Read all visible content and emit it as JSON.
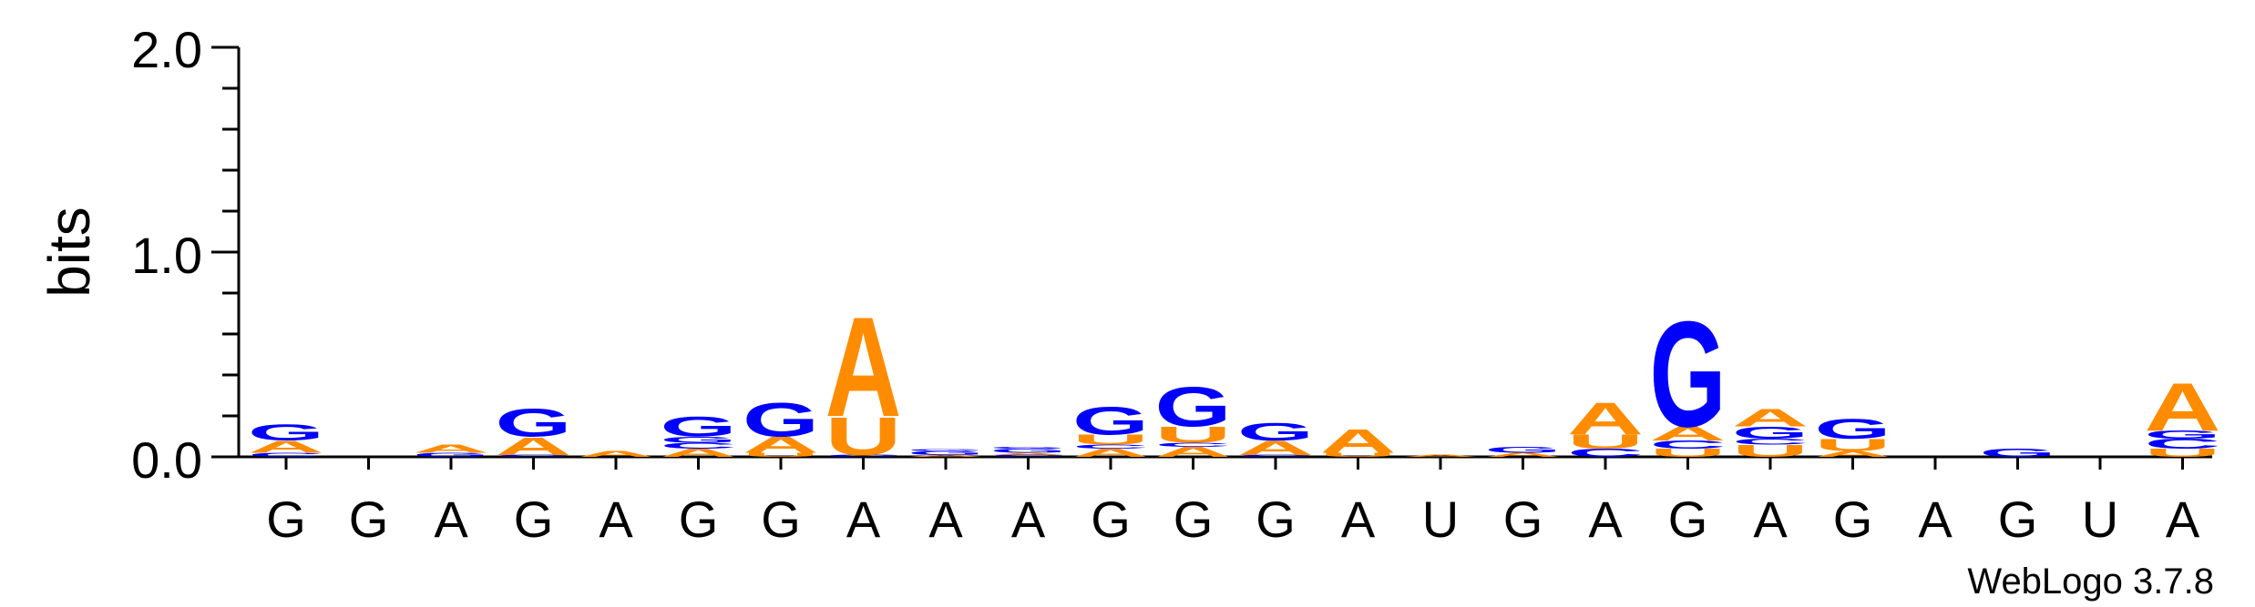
{
  "chart_data": {
    "type": "sequence-logo",
    "ylabel": "bits",
    "ylim": [
      0,
      2.0
    ],
    "yticks": [
      "0.0",
      "1.0",
      "2.0"
    ],
    "footer": "WebLogo 3.7.8",
    "colors": {
      "A": "#FF8C00",
      "U": "#FF8C00",
      "G": "#0000FF",
      "C": "#0000FF"
    },
    "positions": [
      {
        "label": "G",
        "stack": [
          {
            "letter": "C",
            "bits": 0.02
          },
          {
            "letter": "A",
            "bits": 0.06
          },
          {
            "letter": "G",
            "bits": 0.08
          }
        ]
      },
      {
        "label": "G",
        "stack": []
      },
      {
        "label": "A",
        "stack": [
          {
            "letter": "G",
            "bits": 0.02
          },
          {
            "letter": "A",
            "bits": 0.04
          }
        ]
      },
      {
        "label": "G",
        "stack": [
          {
            "letter": "C",
            "bits": 0.01
          },
          {
            "letter": "A",
            "bits": 0.09
          },
          {
            "letter": "G",
            "bits": 0.14
          }
        ]
      },
      {
        "label": "A",
        "stack": [
          {
            "letter": "A",
            "bits": 0.03
          }
        ]
      },
      {
        "label": "G",
        "stack": [
          {
            "letter": "A",
            "bits": 0.04
          },
          {
            "letter": "C",
            "bits": 0.03
          },
          {
            "letter": "G",
            "bits": 0.03
          },
          {
            "letter": "G",
            "bits": 0.1
          }
        ]
      },
      {
        "label": "G",
        "stack": [
          {
            "letter": "U",
            "bits": 0.02
          },
          {
            "letter": "A",
            "bits": 0.08
          },
          {
            "letter": "G",
            "bits": 0.17
          }
        ]
      },
      {
        "label": "A",
        "stack": [
          {
            "letter": "C",
            "bits": 0.01
          },
          {
            "letter": "U",
            "bits": 0.19
          },
          {
            "letter": "A",
            "bits": 0.5
          }
        ]
      },
      {
        "label": "A",
        "stack": [
          {
            "letter": "A",
            "bits": 0.01
          },
          {
            "letter": "G",
            "bits": 0.02
          },
          {
            "letter": "G",
            "bits": 0.01
          }
        ]
      },
      {
        "label": "A",
        "stack": [
          {
            "letter": "C",
            "bits": 0.01
          },
          {
            "letter": "A",
            "bits": 0.01
          },
          {
            "letter": "G",
            "bits": 0.02
          },
          {
            "letter": "G",
            "bits": 0.01
          }
        ]
      },
      {
        "label": "G",
        "stack": [
          {
            "letter": "A",
            "bits": 0.04
          },
          {
            "letter": "C",
            "bits": 0.02
          },
          {
            "letter": "U",
            "bits": 0.05
          },
          {
            "letter": "G",
            "bits": 0.14
          }
        ]
      },
      {
        "label": "G",
        "stack": [
          {
            "letter": "A",
            "bits": 0.05
          },
          {
            "letter": "C",
            "bits": 0.02
          },
          {
            "letter": "U",
            "bits": 0.08
          },
          {
            "letter": "G",
            "bits": 0.2
          }
        ]
      },
      {
        "label": "G",
        "stack": [
          {
            "letter": "C",
            "bits": 0.01
          },
          {
            "letter": "A",
            "bits": 0.07
          },
          {
            "letter": "G",
            "bits": 0.09
          }
        ]
      },
      {
        "label": "A",
        "stack": [
          {
            "letter": "U",
            "bits": 0.02
          },
          {
            "letter": "A",
            "bits": 0.12
          }
        ]
      },
      {
        "label": "U",
        "stack": [
          {
            "letter": "A",
            "bits": 0.01
          }
        ]
      },
      {
        "label": "G",
        "stack": [
          {
            "letter": "A",
            "bits": 0.02
          },
          {
            "letter": "G",
            "bits": 0.03
          }
        ]
      },
      {
        "label": "A",
        "stack": [
          {
            "letter": "C",
            "bits": 0.04
          },
          {
            "letter": "U",
            "bits": 0.07
          },
          {
            "letter": "A",
            "bits": 0.16
          }
        ]
      },
      {
        "label": "G",
        "stack": [
          {
            "letter": "U",
            "bits": 0.04
          },
          {
            "letter": "C",
            "bits": 0.04
          },
          {
            "letter": "A",
            "bits": 0.07
          },
          {
            "letter": "G",
            "bits": 0.53
          }
        ]
      },
      {
        "label": "A",
        "stack": [
          {
            "letter": "U",
            "bits": 0.06
          },
          {
            "letter": "C",
            "bits": 0.03
          },
          {
            "letter": "G",
            "bits": 0.06
          },
          {
            "letter": "A",
            "bits": 0.09
          }
        ]
      },
      {
        "label": "G",
        "stack": [
          {
            "letter": "A",
            "bits": 0.03
          },
          {
            "letter": "U",
            "bits": 0.06
          },
          {
            "letter": "G",
            "bits": 0.1
          }
        ]
      },
      {
        "label": "A",
        "stack": []
      },
      {
        "label": "G",
        "stack": [
          {
            "letter": "G",
            "bits": 0.04
          }
        ]
      },
      {
        "label": "U",
        "stack": []
      },
      {
        "label": "A",
        "stack": [
          {
            "letter": "U",
            "bits": 0.04
          },
          {
            "letter": "C",
            "bits": 0.05
          },
          {
            "letter": "G",
            "bits": 0.04
          },
          {
            "letter": "A",
            "bits": 0.24
          }
        ]
      }
    ]
  }
}
